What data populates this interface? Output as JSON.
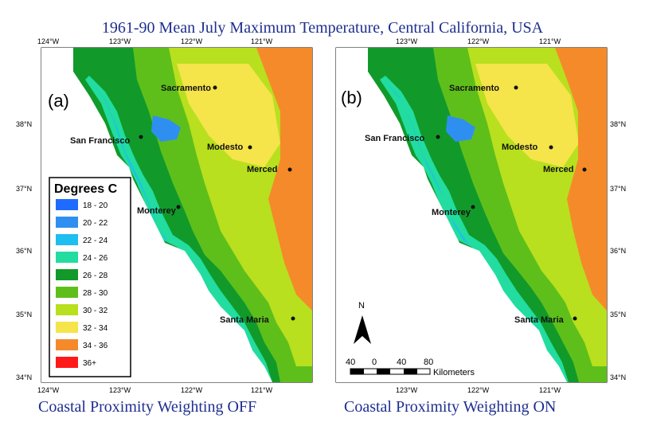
{
  "title": "1961-90 Mean July Maximum Temperature, Central California, USA",
  "colors": {
    "ocean": "#ffffff",
    "c18_20": "#1e6bff",
    "c20_22": "#2f8ff0",
    "c22_24": "#1ebef0",
    "c24_26": "#22dca0",
    "c26_28": "#119a2a",
    "c28_30": "#5fbf1a",
    "c30_32": "#b8e01e",
    "c32_34": "#f5e44a",
    "c34_36": "#f58a2a",
    "c36_plus": "#ff1a1a",
    "title_text": "#1f2f8f"
  },
  "panel_a": {
    "label": "(a)",
    "caption": "Coastal Proximity Weighting OFF",
    "lon_top": [
      "124°W",
      "123°W",
      "122°W",
      "121°W"
    ],
    "lon_bottom": [
      "124°W",
      "123°W",
      "122°W",
      "121°W"
    ],
    "lat_left": [
      "38°N",
      "37°N",
      "36°N",
      "35°N",
      "34°N"
    ],
    "cities": {
      "sacramento": "Sacramento",
      "san_francisco": "San Francisco",
      "modesto": "Modesto",
      "merced": "Merced",
      "monterey": "Monterey",
      "santa_maria": "Santa Maria"
    },
    "legend": {
      "title": "Degrees C",
      "items": [
        {
          "label": "18 - 20",
          "color": "#1e6bff"
        },
        {
          "label": "20 - 22",
          "color": "#2f8ff0"
        },
        {
          "label": "22 - 24",
          "color": "#1ebef0"
        },
        {
          "label": "24 - 26",
          "color": "#22dca0"
        },
        {
          "label": "26 - 28",
          "color": "#119a2a"
        },
        {
          "label": "28 - 30",
          "color": "#5fbf1a"
        },
        {
          "label": "30 - 32",
          "color": "#b8e01e"
        },
        {
          "label": "32 - 34",
          "color": "#f5e44a"
        },
        {
          "label": "34 - 36",
          "color": "#f58a2a"
        },
        {
          "label": "36+",
          "color": "#ff1a1a"
        }
      ]
    }
  },
  "panel_b": {
    "label": "(b)",
    "caption": "Coastal Proximity Weighting ON",
    "lon_top": [
      "123°W",
      "122°W",
      "121°W"
    ],
    "lon_bottom": [
      "123°W",
      "122°W",
      "121°W"
    ],
    "lat_right": [
      "38°N",
      "37°N",
      "36°N",
      "35°N",
      "34°N"
    ],
    "cities": {
      "sacramento": "Sacramento",
      "san_francisco": "San Francisco",
      "modesto": "Modesto",
      "merced": "Merced",
      "monterey": "Monterey",
      "santa_maria": "Santa Maria"
    },
    "north_label": "N",
    "scale": {
      "ticks": [
        "40",
        "0",
        "40",
        "80"
      ],
      "unit": "Kilometers"
    }
  }
}
